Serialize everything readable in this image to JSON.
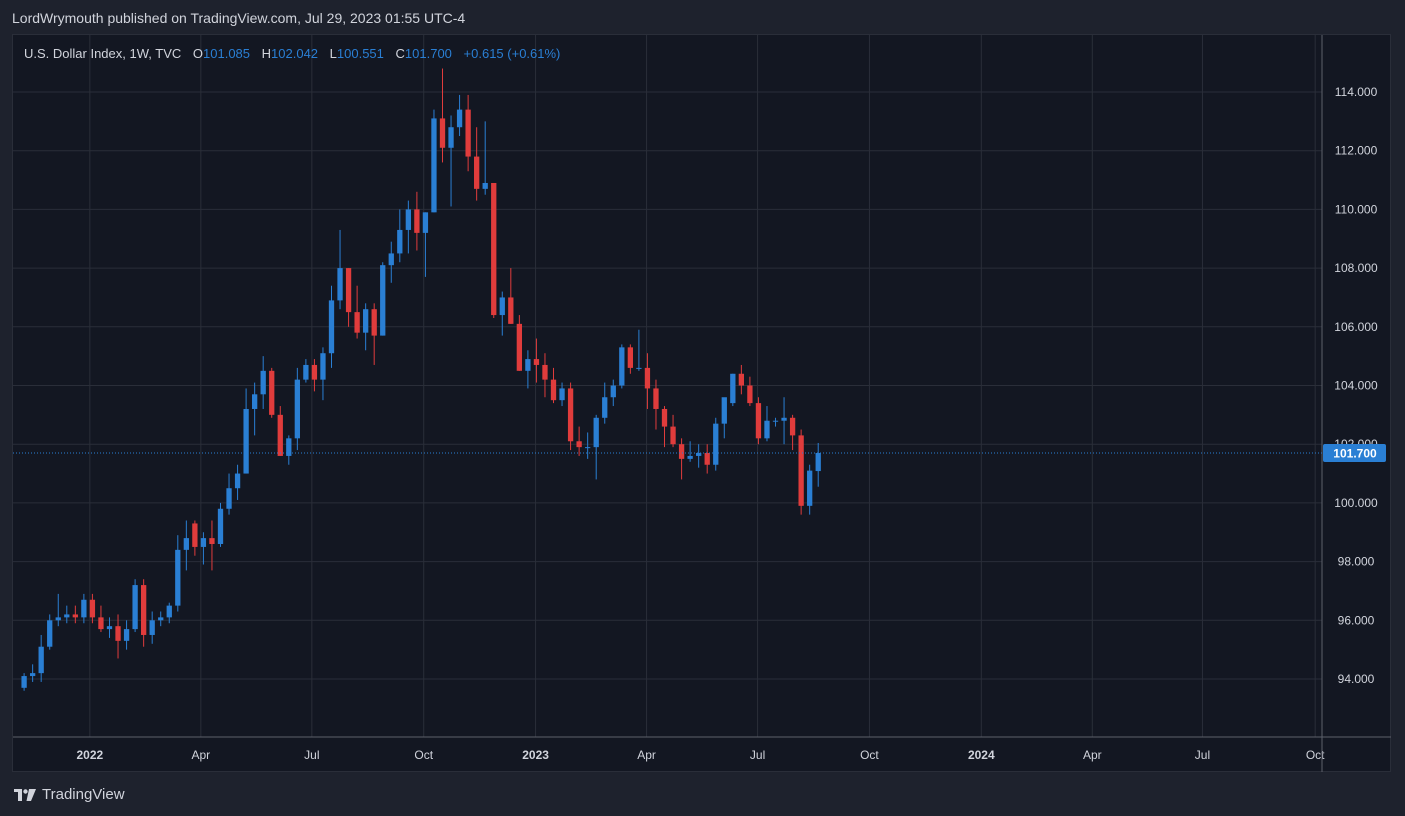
{
  "header": {
    "published": "LordWrymouth published on TradingView.com, Jul 29, 2023 01:55 UTC-4"
  },
  "legend": {
    "symbol": "U.S. Dollar Index, 1W, TVC",
    "o_label": "O",
    "o_value": "101.085",
    "h_label": "H",
    "h_value": "102.042",
    "l_label": "L",
    "l_value": "100.551",
    "c_label": "C",
    "c_value": "101.700",
    "change": "+0.615 (+0.61%)"
  },
  "footer": {
    "brand": "TradingView"
  },
  "colors": {
    "up": "#2a7fd4",
    "down": "#e03c3c",
    "grid": "#2a2e39",
    "axis_text": "#d1d4dc",
    "background": "#131722",
    "price_label_bg": "#2a7fd4"
  },
  "chart_data": {
    "type": "candlestick",
    "ylim": [
      92.0,
      115.7
    ],
    "y_ticks": [
      "94.000",
      "96.000",
      "98.000",
      "100.000",
      "102.000",
      "104.000",
      "106.000",
      "108.000",
      "110.000",
      "112.000",
      "114.000"
    ],
    "x_ticks": [
      {
        "label": "2022",
        "bold": true,
        "bar": 7.7
      },
      {
        "label": "Apr",
        "bold": false,
        "bar": 20.7
      },
      {
        "label": "Jul",
        "bold": false,
        "bar": 33.7
      },
      {
        "label": "Oct",
        "bold": false,
        "bar": 46.8
      },
      {
        "label": "2023",
        "bold": true,
        "bar": 59.9
      },
      {
        "label": "Apr",
        "bold": false,
        "bar": 72.9
      },
      {
        "label": "Jul",
        "bold": false,
        "bar": 85.9
      },
      {
        "label": "Oct",
        "bold": false,
        "bar": 99.0
      },
      {
        "label": "2024",
        "bold": true,
        "bar": 112.1
      },
      {
        "label": "Apr",
        "bold": false,
        "bar": 125.1
      },
      {
        "label": "Jul",
        "bold": false,
        "bar": 138.0
      },
      {
        "label": "Oct",
        "bold": false,
        "bar": 151.2
      }
    ],
    "x_range_bars": [
      -1.3,
      152.0
    ],
    "last_price": {
      "value": 101.7,
      "label": "101.700"
    },
    "candles": [
      {
        "o": 93.7,
        "h": 94.2,
        "l": 93.6,
        "c": 94.1
      },
      {
        "o": 94.1,
        "h": 94.5,
        "l": 93.9,
        "c": 94.2
      },
      {
        "o": 94.2,
        "h": 95.5,
        "l": 93.9,
        "c": 95.1
      },
      {
        "o": 95.1,
        "h": 96.2,
        "l": 95.0,
        "c": 96.0
      },
      {
        "o": 96.0,
        "h": 96.9,
        "l": 95.8,
        "c": 96.1
      },
      {
        "o": 96.1,
        "h": 96.5,
        "l": 95.9,
        "c": 96.2
      },
      {
        "o": 96.2,
        "h": 96.5,
        "l": 95.9,
        "c": 96.1
      },
      {
        "o": 96.1,
        "h": 96.9,
        "l": 95.9,
        "c": 96.7
      },
      {
        "o": 96.7,
        "h": 96.9,
        "l": 95.9,
        "c": 96.1
      },
      {
        "o": 96.1,
        "h": 96.5,
        "l": 95.6,
        "c": 95.7
      },
      {
        "o": 95.7,
        "h": 96.1,
        "l": 95.4,
        "c": 95.8
      },
      {
        "o": 95.8,
        "h": 96.2,
        "l": 94.7,
        "c": 95.3
      },
      {
        "o": 95.3,
        "h": 96.0,
        "l": 95.0,
        "c": 95.7
      },
      {
        "o": 95.7,
        "h": 97.4,
        "l": 95.6,
        "c": 97.2
      },
      {
        "o": 97.2,
        "h": 97.4,
        "l": 95.1,
        "c": 95.5
      },
      {
        "o": 95.5,
        "h": 96.3,
        "l": 95.2,
        "c": 96.0
      },
      {
        "o": 96.0,
        "h": 96.3,
        "l": 95.8,
        "c": 96.1
      },
      {
        "o": 96.1,
        "h": 96.6,
        "l": 95.9,
        "c": 96.5
      },
      {
        "o": 96.5,
        "h": 98.9,
        "l": 96.3,
        "c": 98.4
      },
      {
        "o": 98.4,
        "h": 99.4,
        "l": 97.7,
        "c": 98.8
      },
      {
        "o": 99.3,
        "h": 99.4,
        "l": 98.2,
        "c": 98.5
      },
      {
        "o": 98.5,
        "h": 99.0,
        "l": 97.9,
        "c": 98.8
      },
      {
        "o": 98.8,
        "h": 99.4,
        "l": 97.7,
        "c": 98.6
      },
      {
        "o": 98.6,
        "h": 100.0,
        "l": 98.5,
        "c": 99.8
      },
      {
        "o": 99.8,
        "h": 101.0,
        "l": 99.6,
        "c": 100.5
      },
      {
        "o": 100.5,
        "h": 101.3,
        "l": 100.1,
        "c": 101.0
      },
      {
        "o": 101.0,
        "h": 103.9,
        "l": 101.0,
        "c": 103.2
      },
      {
        "o": 103.2,
        "h": 104.1,
        "l": 102.3,
        "c": 103.7
      },
      {
        "o": 103.7,
        "h": 105.0,
        "l": 103.2,
        "c": 104.5
      },
      {
        "o": 104.5,
        "h": 104.6,
        "l": 102.9,
        "c": 103.0
      },
      {
        "o": 103.0,
        "h": 103.3,
        "l": 101.6,
        "c": 101.6
      },
      {
        "o": 101.6,
        "h": 102.3,
        "l": 101.3,
        "c": 102.2
      },
      {
        "o": 102.2,
        "h": 104.6,
        "l": 101.8,
        "c": 104.2
      },
      {
        "o": 104.2,
        "h": 104.9,
        "l": 104.1,
        "c": 104.7
      },
      {
        "o": 104.7,
        "h": 104.9,
        "l": 103.8,
        "c": 104.2
      },
      {
        "o": 104.2,
        "h": 105.3,
        "l": 103.5,
        "c": 105.1
      },
      {
        "o": 105.1,
        "h": 107.4,
        "l": 104.6,
        "c": 106.9
      },
      {
        "o": 106.9,
        "h": 109.3,
        "l": 106.6,
        "c": 108.0
      },
      {
        "o": 108.0,
        "h": 108.0,
        "l": 106.0,
        "c": 106.5
      },
      {
        "o": 106.5,
        "h": 107.4,
        "l": 105.6,
        "c": 105.8
      },
      {
        "o": 105.8,
        "h": 106.8,
        "l": 105.2,
        "c": 106.6
      },
      {
        "o": 106.6,
        "h": 106.8,
        "l": 104.7,
        "c": 105.7
      },
      {
        "o": 105.7,
        "h": 108.2,
        "l": 105.7,
        "c": 108.1
      },
      {
        "o": 108.1,
        "h": 108.9,
        "l": 107.5,
        "c": 108.5
      },
      {
        "o": 108.5,
        "h": 110.0,
        "l": 108.2,
        "c": 109.3
      },
      {
        "o": 109.3,
        "h": 110.3,
        "l": 108.5,
        "c": 110.0
      },
      {
        "o": 110.0,
        "h": 110.6,
        "l": 108.6,
        "c": 109.2
      },
      {
        "o": 109.2,
        "h": 109.9,
        "l": 107.7,
        "c": 109.9
      },
      {
        "o": 109.9,
        "h": 113.4,
        "l": 109.9,
        "c": 113.1
      },
      {
        "o": 113.1,
        "h": 114.8,
        "l": 111.6,
        "c": 112.1
      },
      {
        "o": 112.1,
        "h": 113.2,
        "l": 110.1,
        "c": 112.8
      },
      {
        "o": 112.8,
        "h": 113.9,
        "l": 112.5,
        "c": 113.4
      },
      {
        "o": 113.4,
        "h": 113.9,
        "l": 111.3,
        "c": 111.8
      },
      {
        "o": 111.8,
        "h": 112.8,
        "l": 110.3,
        "c": 110.7
      },
      {
        "o": 110.7,
        "h": 113.0,
        "l": 110.5,
        "c": 110.9
      },
      {
        "o": 110.9,
        "h": 110.9,
        "l": 106.3,
        "c": 106.4
      },
      {
        "o": 106.4,
        "h": 107.2,
        "l": 105.7,
        "c": 107.0
      },
      {
        "o": 107.0,
        "h": 108.0,
        "l": 106.1,
        "c": 106.1
      },
      {
        "o": 106.1,
        "h": 106.4,
        "l": 104.5,
        "c": 104.5
      },
      {
        "o": 104.5,
        "h": 105.2,
        "l": 103.9,
        "c": 104.9
      },
      {
        "o": 104.9,
        "h": 105.6,
        "l": 104.1,
        "c": 104.7
      },
      {
        "o": 104.7,
        "h": 105.1,
        "l": 103.6,
        "c": 104.2
      },
      {
        "o": 104.2,
        "h": 104.6,
        "l": 103.4,
        "c": 103.5
      },
      {
        "o": 103.5,
        "h": 104.1,
        "l": 103.3,
        "c": 103.9
      },
      {
        "o": 103.9,
        "h": 104.1,
        "l": 101.8,
        "c": 102.1
      },
      {
        "o": 102.1,
        "h": 102.6,
        "l": 101.6,
        "c": 101.9
      },
      {
        "o": 101.9,
        "h": 102.4,
        "l": 101.5,
        "c": 101.9
      },
      {
        "o": 101.9,
        "h": 103.0,
        "l": 100.8,
        "c": 102.9
      },
      {
        "o": 102.9,
        "h": 104.1,
        "l": 102.7,
        "c": 103.6
      },
      {
        "o": 103.6,
        "h": 104.2,
        "l": 103.3,
        "c": 104.0
      },
      {
        "o": 104.0,
        "h": 105.4,
        "l": 103.9,
        "c": 105.3
      },
      {
        "o": 105.3,
        "h": 105.4,
        "l": 104.4,
        "c": 104.6
      },
      {
        "o": 104.6,
        "h": 105.9,
        "l": 104.5,
        "c": 104.6
      },
      {
        "o": 104.6,
        "h": 105.1,
        "l": 103.2,
        "c": 103.9
      },
      {
        "o": 103.9,
        "h": 104.2,
        "l": 102.5,
        "c": 103.2
      },
      {
        "o": 103.2,
        "h": 103.3,
        "l": 101.9,
        "c": 102.6
      },
      {
        "o": 102.6,
        "h": 103.0,
        "l": 101.9,
        "c": 102.0
      },
      {
        "o": 102.0,
        "h": 102.2,
        "l": 100.8,
        "c": 101.5
      },
      {
        "o": 101.5,
        "h": 102.1,
        "l": 101.4,
        "c": 101.6
      },
      {
        "o": 101.6,
        "h": 102.0,
        "l": 101.2,
        "c": 101.7
      },
      {
        "o": 101.7,
        "h": 102.0,
        "l": 101.0,
        "c": 101.3
      },
      {
        "o": 101.3,
        "h": 102.9,
        "l": 101.1,
        "c": 102.7
      },
      {
        "o": 102.7,
        "h": 103.4,
        "l": 102.2,
        "c": 103.6
      },
      {
        "o": 103.4,
        "h": 104.4,
        "l": 103.3,
        "c": 104.4
      },
      {
        "o": 104.4,
        "h": 104.7,
        "l": 103.7,
        "c": 104.0
      },
      {
        "o": 104.0,
        "h": 104.3,
        "l": 103.3,
        "c": 103.4
      },
      {
        "o": 103.4,
        "h": 103.6,
        "l": 102.0,
        "c": 102.2
      },
      {
        "o": 102.2,
        "h": 103.3,
        "l": 102.1,
        "c": 102.8
      },
      {
        "o": 102.8,
        "h": 102.9,
        "l": 102.6,
        "c": 102.8
      },
      {
        "o": 102.8,
        "h": 103.6,
        "l": 102.0,
        "c": 102.9
      },
      {
        "o": 102.9,
        "h": 103.0,
        "l": 101.8,
        "c": 102.3
      },
      {
        "o": 102.3,
        "h": 102.5,
        "l": 99.6,
        "c": 99.9
      },
      {
        "o": 99.9,
        "h": 101.3,
        "l": 99.6,
        "c": 101.1
      },
      {
        "o": 101.085,
        "h": 102.042,
        "l": 100.551,
        "c": 101.7
      }
    ]
  }
}
